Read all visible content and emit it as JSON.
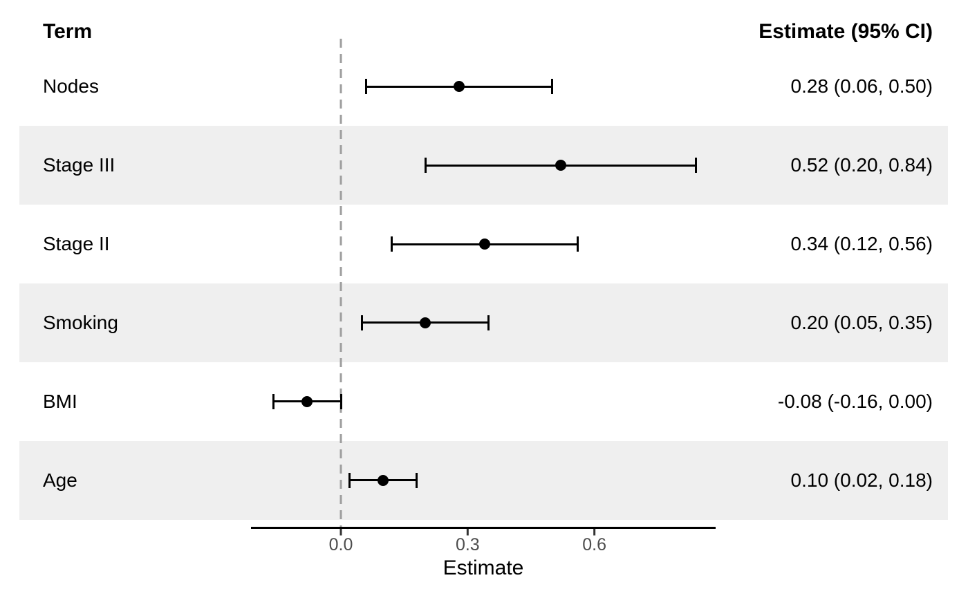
{
  "header": {
    "term": "Term",
    "estimate": "Estimate (95% CI)"
  },
  "axis": {
    "label": "Estimate",
    "ticks": [
      "0.0",
      "0.3",
      "0.6"
    ]
  },
  "chart_data": {
    "type": "scatter",
    "subtype": "forest-plot",
    "title": "",
    "xlabel": "Estimate",
    "ylabel": "Term",
    "x_ticks": [
      0.0,
      0.3,
      0.6
    ],
    "panel_x_range": [
      -0.213,
      0.887
    ],
    "reference_line": 0.0,
    "legend": "none",
    "grid": "off",
    "rows": [
      {
        "term": "Nodes",
        "estimate": 0.28,
        "ci_low": 0.06,
        "ci_high": 0.5,
        "label": "0.28 (0.06, 0.50)"
      },
      {
        "term": "Stage III",
        "estimate": 0.52,
        "ci_low": 0.2,
        "ci_high": 0.84,
        "label": "0.52 (0.20, 0.84)"
      },
      {
        "term": "Stage II",
        "estimate": 0.34,
        "ci_low": 0.12,
        "ci_high": 0.56,
        "label": "0.34 (0.12, 0.56)"
      },
      {
        "term": "Smoking",
        "estimate": 0.2,
        "ci_low": 0.05,
        "ci_high": 0.35,
        "label": "0.20 (0.05, 0.35)"
      },
      {
        "term": "BMI",
        "estimate": -0.08,
        "ci_low": -0.16,
        "ci_high": 0.0,
        "label": "-0.08 (-0.16, 0.00)"
      },
      {
        "term": "Age",
        "estimate": 0.1,
        "ci_low": 0.02,
        "ci_high": 0.18,
        "label": "0.10 (0.02, 0.18)"
      }
    ]
  },
  "colors": {
    "stripe": "#EFEFEF",
    "reference_line": "#9E9E9E",
    "marks": "#000000",
    "axis_line": "#000000",
    "tick_mark": "#333333",
    "tick_text": "#4D4D4D",
    "background": "#FFFFFF"
  }
}
